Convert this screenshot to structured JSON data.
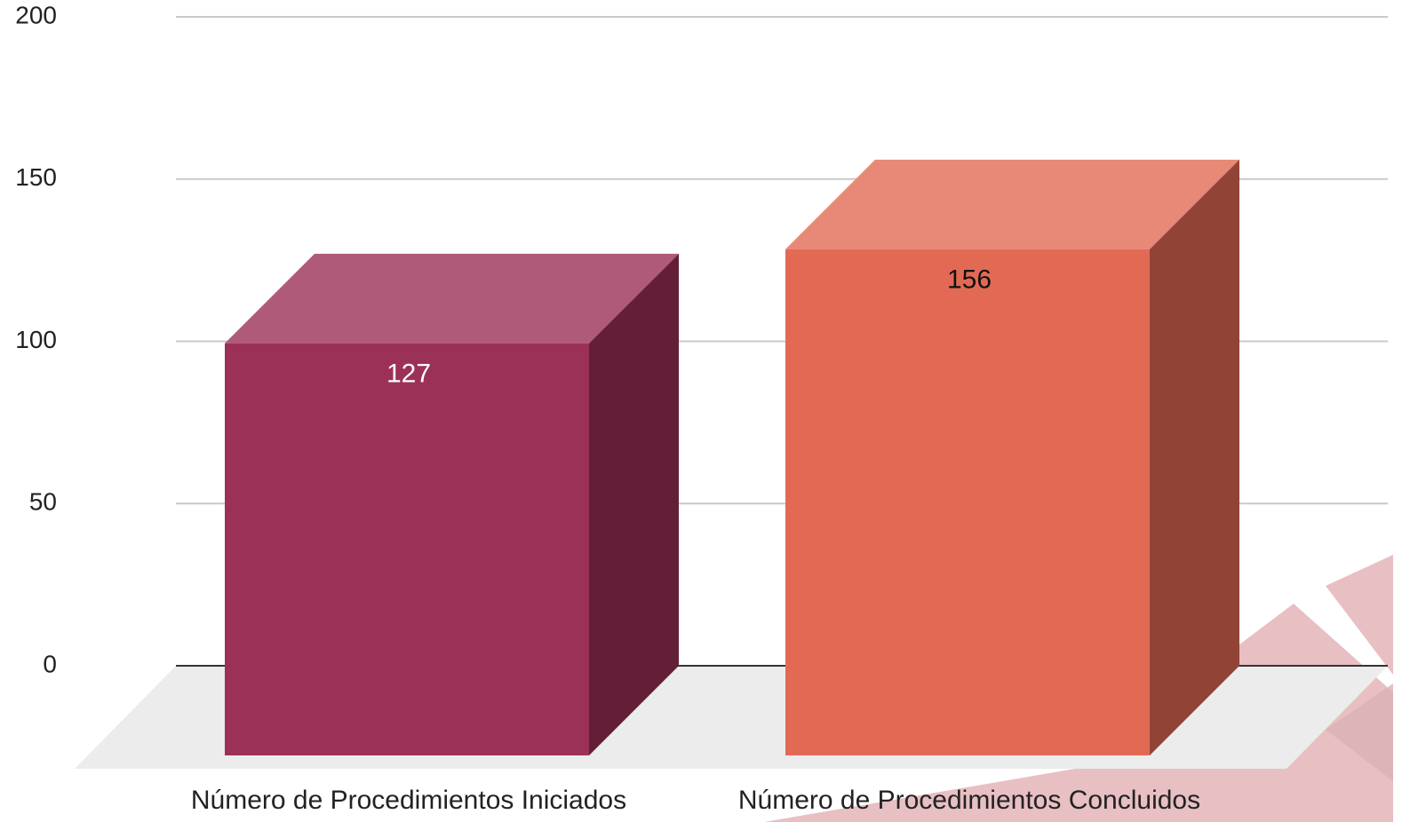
{
  "chart_data": {
    "type": "bar3d",
    "categories": [
      "Número de Procedimientos Iniciados",
      "Número de Procedimientos Concluidos"
    ],
    "values": [
      127,
      156
    ],
    "colors": [
      "#9c3157",
      "#e26a55"
    ],
    "ylim": [
      0,
      200
    ],
    "yticks": [
      0,
      50,
      100,
      150,
      200
    ],
    "grid": true
  }
}
